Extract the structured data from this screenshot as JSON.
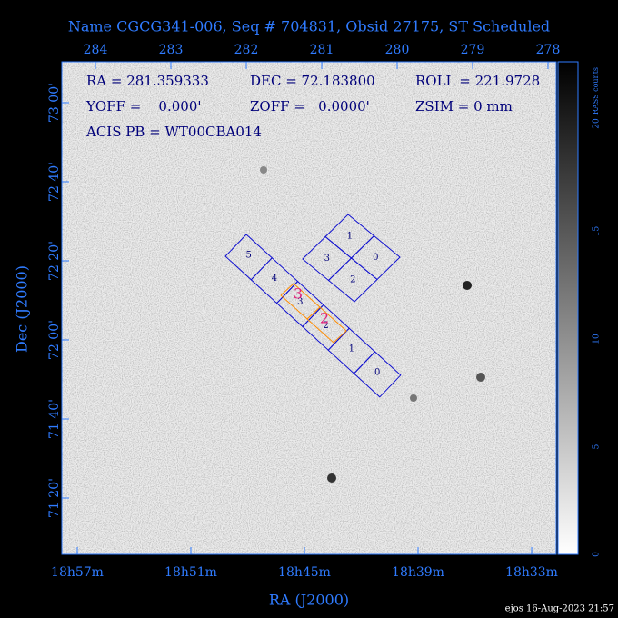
{
  "title": "Name CGCG341-006, Seq # 704831, Obsid 27175, ST Scheduled",
  "top_axis": {
    "ticks": [
      "284",
      "283",
      "282",
      "281",
      "280",
      "279",
      "278"
    ]
  },
  "left_axis": {
    "title": "Dec (J2000)",
    "ticks": [
      "73 00'",
      "72 40'",
      "72 20'",
      "72 00'",
      "71 40'",
      "71 20'"
    ]
  },
  "bottom_axis": {
    "title": "RA (J2000)",
    "ticks": [
      "18h57m",
      "18h51m",
      "18h45m",
      "18h39m",
      "18h33m"
    ]
  },
  "colorbar": {
    "label": "RASS counts",
    "ticks": [
      "0",
      "5",
      "10",
      "15",
      "20"
    ]
  },
  "info": {
    "lines": [
      [
        "RA = 281.359333",
        "DEC = 72.183800",
        "ROLL = 221.9728"
      ],
      [
        "YOFF =    0.000'",
        "ZOFF =   0.0000'",
        "ZSIM = 0 mm"
      ],
      [
        "ACIS PB = WT00CBA014"
      ]
    ]
  },
  "acis_s": {
    "chips": [
      "5",
      "4",
      "3",
      "2",
      "1",
      "0"
    ]
  },
  "acis_i": {
    "chips": [
      "1",
      "3",
      "0",
      "2"
    ]
  },
  "aimpoint": {
    "labels": [
      "3",
      "2"
    ]
  },
  "footer": "ejos 16-Aug-2023 21:57"
}
